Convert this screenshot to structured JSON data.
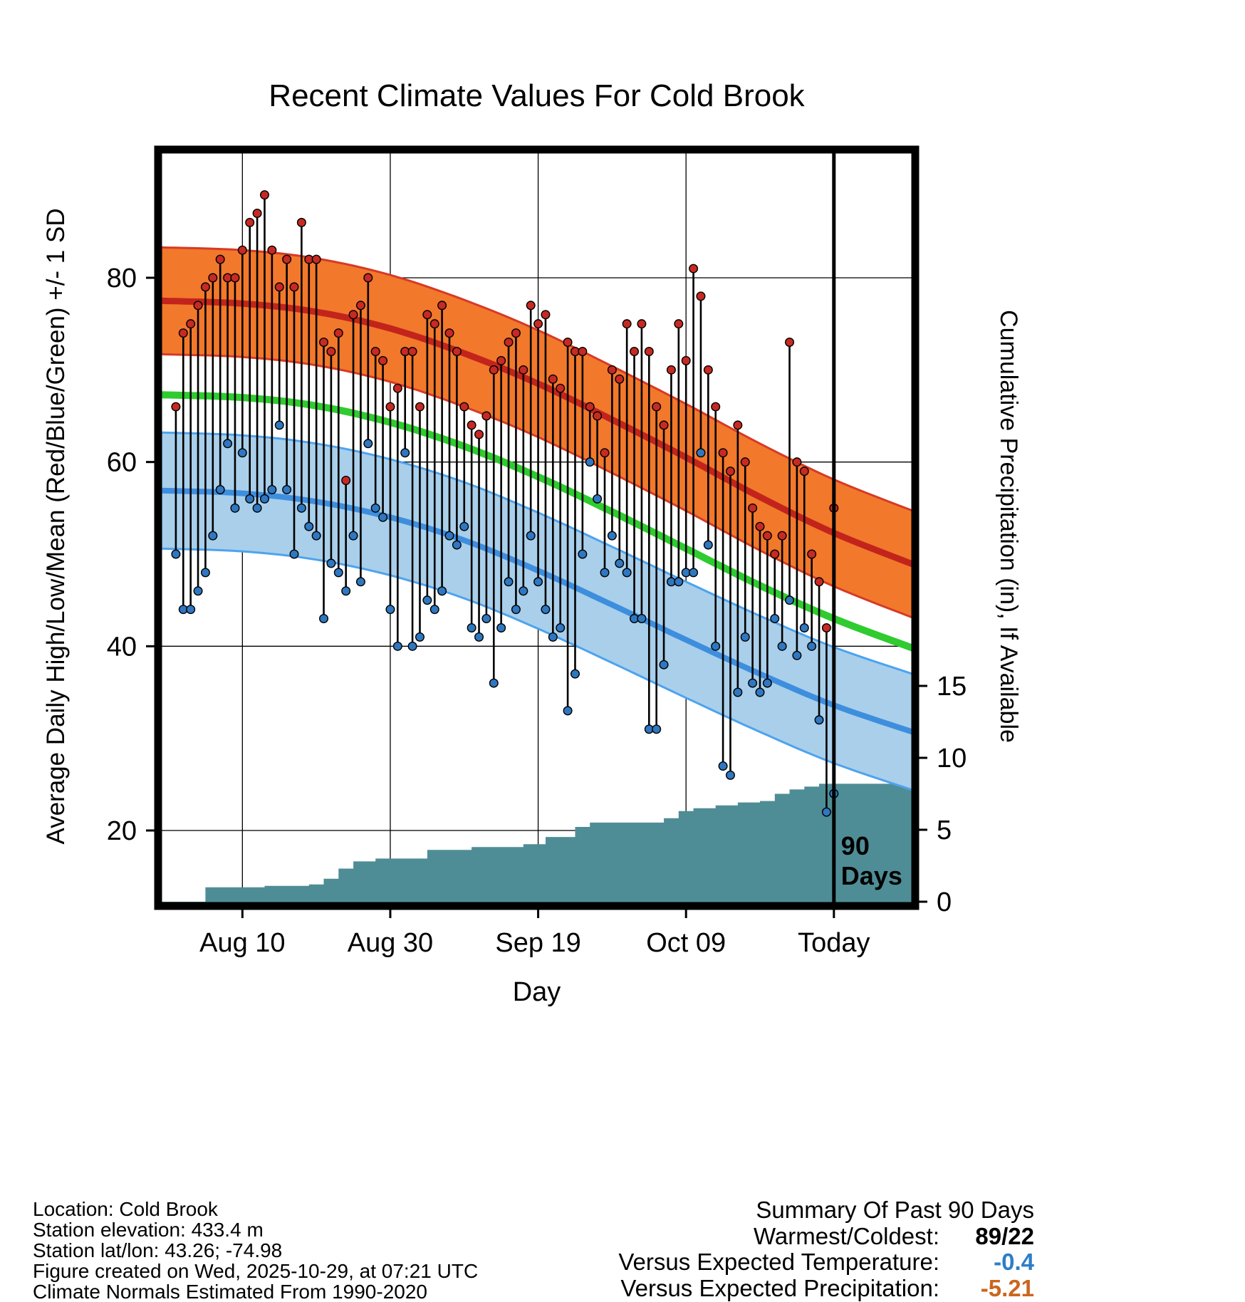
{
  "chart_data": {
    "type": "line",
    "title": "Recent Climate Values For Cold Brook",
    "xlabel": "Day",
    "ylabel_left": "Average Daily High/Low/Mean (Red/Blue/Green) +/- 1 SD",
    "ylabel_right": "Cumulative Precipitation (in), If Available",
    "x_units": "day index, 0 = Aug 1 and 89 = Today (Oct 29)",
    "x_tick_days": [
      9,
      29,
      49,
      69,
      89
    ],
    "x_tick_labels": [
      "Aug 10",
      "Aug 30",
      "Sep 19",
      "Oct 09",
      "Today"
    ],
    "temp_axis_ticks": [
      20,
      40,
      60,
      80
    ],
    "precip_axis_ticks": [
      0,
      5,
      10,
      15
    ],
    "today_day": 89,
    "today_annotation": [
      "90",
      "Days"
    ],
    "daily": {
      "high": [
        66,
        74,
        75,
        77,
        79,
        80,
        82,
        80,
        80,
        83,
        86,
        87,
        89,
        83,
        79,
        82,
        79,
        86,
        82,
        82,
        73,
        72,
        74,
        58,
        76,
        77,
        80,
        72,
        71,
        66,
        68,
        72,
        72,
        66,
        76,
        75,
        77,
        74,
        72,
        66,
        64,
        63,
        65,
        70,
        71,
        73,
        74,
        70,
        77,
        75,
        76,
        69,
        68,
        73,
        72,
        72,
        66,
        65,
        61,
        70,
        69,
        75,
        72,
        75,
        72,
        66,
        64,
        70,
        75,
        71,
        81,
        78,
        70,
        66,
        61,
        59,
        64,
        60,
        55,
        53,
        52,
        50,
        52,
        73,
        60,
        59,
        50,
        47,
        42,
        55
      ],
      "low": [
        50,
        44,
        44,
        46,
        48,
        52,
        57,
        62,
        55,
        61,
        56,
        55,
        56,
        57,
        64,
        57,
        50,
        55,
        53,
        52,
        43,
        49,
        48,
        46,
        52,
        47,
        62,
        55,
        54,
        44,
        40,
        61,
        40,
        41,
        45,
        44,
        46,
        52,
        51,
        53,
        42,
        41,
        43,
        36,
        42,
        47,
        44,
        46,
        52,
        47,
        44,
        41,
        42,
        33,
        37,
        50,
        60,
        56,
        48,
        52,
        49,
        48,
        43,
        43,
        31,
        31,
        38,
        47,
        47,
        48,
        48,
        61,
        51,
        40,
        27,
        26,
        35,
        41,
        36,
        35,
        36,
        43,
        40,
        45,
        39,
        42,
        40,
        32,
        22,
        24
      ]
    },
    "normals": {
      "control_days": [
        -2,
        9,
        19,
        29,
        39,
        49,
        59,
        69,
        79,
        89,
        100
      ],
      "high_mean": [
        77.5,
        77.2,
        76.3,
        74.5,
        71.8,
        68.5,
        64.6,
        60.5,
        56.2,
        52.3,
        48.8
      ],
      "mean": [
        67.3,
        67.0,
        66.1,
        64.3,
        61.7,
        58.4,
        54.6,
        50.6,
        46.6,
        43.0,
        39.7
      ],
      "low_mean": [
        56.9,
        56.6,
        55.7,
        54.0,
        51.5,
        48.2,
        44.5,
        40.7,
        37.0,
        33.6,
        30.6
      ],
      "high_sd": 5.8,
      "low_sd": 6.3
    },
    "cumulative_precip_steps": [
      [
        -2,
        0
      ],
      [
        4,
        1.0
      ],
      [
        12,
        1.1
      ],
      [
        18,
        1.2
      ],
      [
        20,
        1.6
      ],
      [
        22,
        2.3
      ],
      [
        24,
        2.8
      ],
      [
        27,
        3.0
      ],
      [
        34,
        3.6
      ],
      [
        40,
        3.8
      ],
      [
        47,
        4.0
      ],
      [
        50,
        4.5
      ],
      [
        54,
        5.2
      ],
      [
        56,
        5.5
      ],
      [
        66,
        5.8
      ],
      [
        68,
        6.3
      ],
      [
        70,
        6.5
      ],
      [
        73,
        6.7
      ],
      [
        76,
        6.9
      ],
      [
        79,
        7.0
      ],
      [
        81,
        7.5
      ],
      [
        83,
        7.8
      ],
      [
        85,
        8.0
      ],
      [
        87,
        8.2
      ],
      [
        100,
        8.2
      ]
    ]
  },
  "footer": {
    "lines": [
      "Location: Cold Brook",
      "Station elevation: 433.4 m",
      "Station lat/lon: 43.26; -74.98",
      "Figure created on Wed, 2025-10-29, at 07:21 UTC",
      "Climate Normals Estimated From 1990-2020"
    ]
  },
  "summary": {
    "title": "Summary Of Past 90 Days",
    "rows": [
      {
        "label": "Warmest/Coldest:",
        "value": "89/22",
        "color": "#000000"
      },
      {
        "label": "Versus Expected Temperature:",
        "value": "-0.4",
        "color": "#2E7DC8"
      },
      {
        "label": "Versus Expected Precipitation:",
        "value": "-5.21",
        "color": "#C9661F"
      }
    ]
  },
  "colors": {
    "high_band_fill": "#F2782B",
    "high_band_edge": "#D63A26",
    "high_mean_line": "#C2241C",
    "mean_line": "#2FCB2F",
    "low_band_fill": "#A9CFEA",
    "low_band_edge": "#4DA3EE",
    "low_mean_line": "#3E8EDE",
    "precip_fill": "#4F8D96",
    "high_dot": "#C62A22",
    "low_dot": "#2F77C0",
    "grid": "#000000",
    "frame": "#000000"
  }
}
